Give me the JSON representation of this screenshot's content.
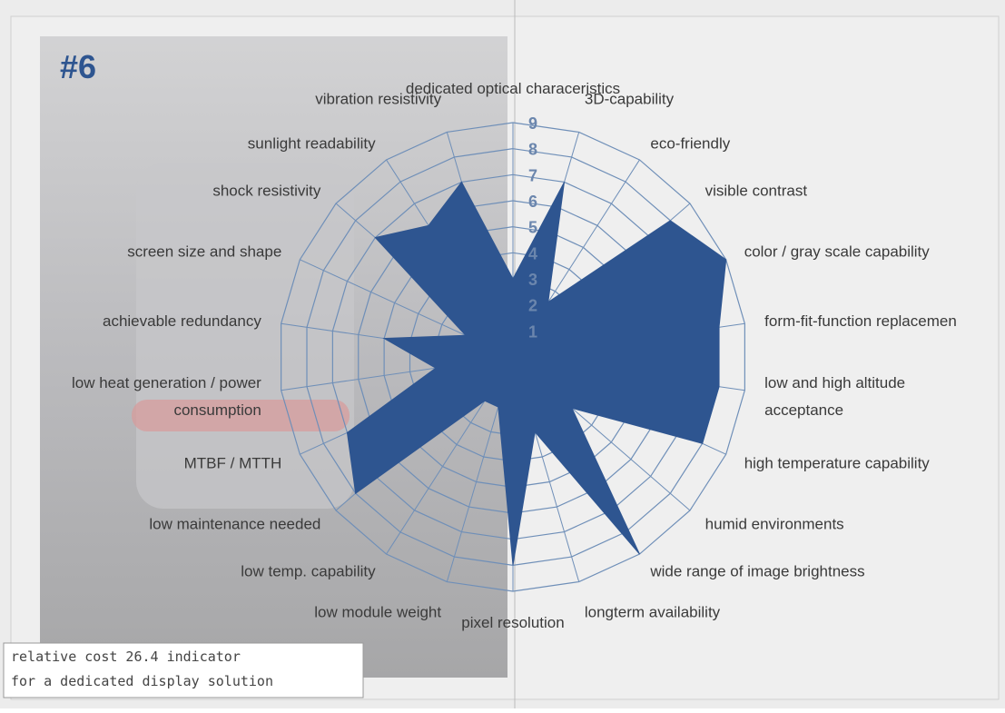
{
  "chart_data": {
    "type": "radar",
    "title": "#6",
    "categories": [
      "dedicated optical characeristics",
      "3D-capability",
      "eco-friendly",
      "visible contrast",
      "color / gray scale capability",
      "form-fit-function replacemen",
      [
        "low and high altitude",
        "acceptance"
      ],
      "high temperature capability",
      "humid environments",
      "wide range of image brightness",
      "longterm availability",
      "pixel resolution",
      "low module weight",
      "low temp. capability",
      "low maintenance needed",
      "MTBF / MTTH",
      [
        "low heat generation / power",
        "consumption"
      ],
      "achievable redundancy",
      "screen size and shape",
      "shock  resistivity",
      "sunlight readability",
      "vibration resistivity"
    ],
    "values": [
      3,
      7,
      2.5,
      8,
      9,
      8,
      8,
      8,
      3,
      9,
      3,
      8,
      2,
      2,
      8,
      7,
      3,
      5,
      2,
      7,
      6,
      7
    ],
    "color": "#2e5590",
    "ylim": [
      0,
      9
    ],
    "yticks": [
      1,
      2,
      3,
      4,
      5,
      6,
      7,
      8,
      9
    ],
    "note": [
      "relative cost 26.4 indicator",
      "for a dedicated display solution"
    ]
  }
}
